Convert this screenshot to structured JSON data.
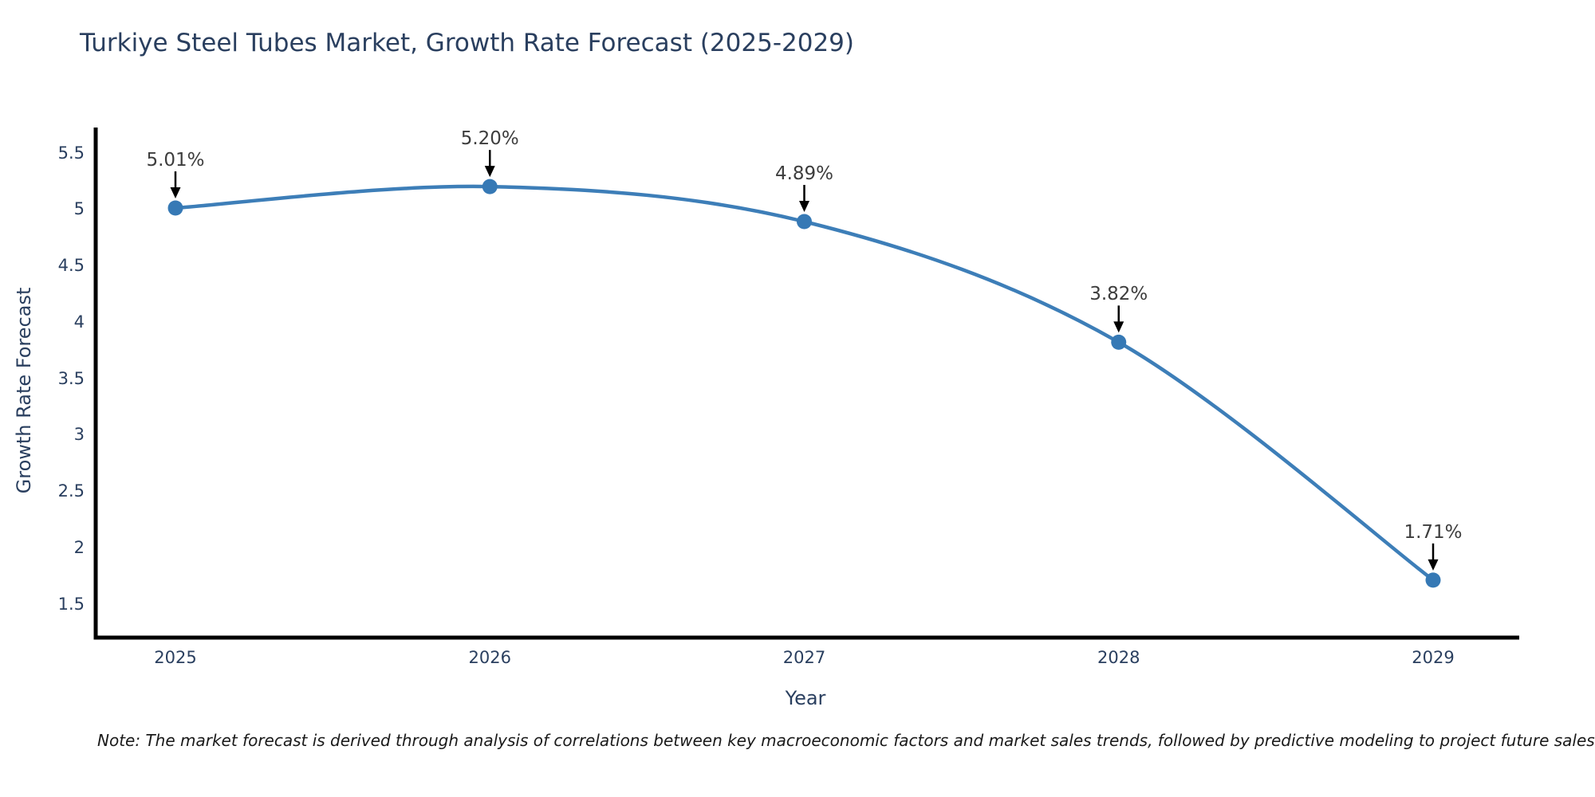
{
  "title": "Turkiye Steel Tubes Market, Growth Rate Forecast (2025-2029)",
  "axes": {
    "y_title": "Growth Rate Forecast",
    "x_title": "Year"
  },
  "footnote": "Note: The market forecast is derived through analysis of correlations between key macroeconomic factors and market sales trends, followed by predictive modeling to project future sales",
  "colors": {
    "line": "#3d7eb8",
    "marker": "#3679b5",
    "arrow": "#000000",
    "axis_line": "#000000",
    "title_text": "#2a3f5f",
    "tick_text": "#2a3f5f",
    "annotation_text": "#3d3d3d"
  },
  "chart_data": {
    "type": "line",
    "line_shape": "spline",
    "grid": false,
    "legend": "none",
    "title": "Turkiye Steel Tubes Market, Growth Rate Forecast (2025-2029)",
    "xlabel": "Year",
    "ylabel": "Growth Rate Forecast",
    "categories": [
      "2025",
      "2026",
      "2027",
      "2028",
      "2029"
    ],
    "x": [
      2025,
      2026,
      2027,
      2028,
      2029
    ],
    "values": [
      5.01,
      5.2,
      4.89,
      3.82,
      1.71
    ],
    "point_labels": [
      "5.01%",
      "5.20%",
      "4.89%",
      "3.82%",
      "1.71%"
    ],
    "yticks": [
      1.5,
      2,
      2.5,
      3,
      3.5,
      4,
      4.5,
      5,
      5.5
    ],
    "ytick_labels": [
      "1.5",
      "2",
      "2.5",
      "3",
      "3.5",
      "4",
      "4.5",
      "5",
      "5.5"
    ],
    "ylim": [
      1.2,
      5.71
    ]
  }
}
